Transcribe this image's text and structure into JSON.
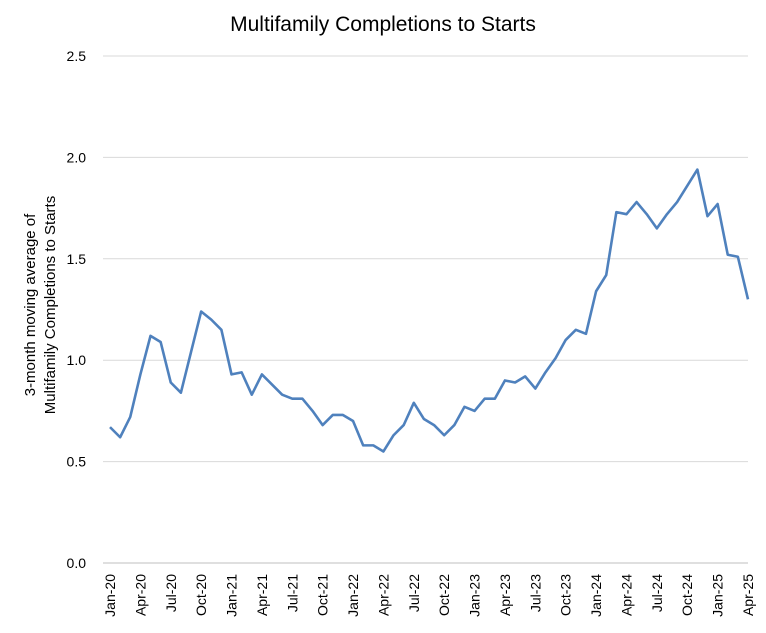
{
  "chart_data": {
    "type": "line",
    "title": "Multifamily Completions to Starts",
    "ylabel_lines": [
      "3-month moving average of",
      "Multifamily Completions to Starts"
    ],
    "xlabel": "",
    "ylim": [
      0,
      2.5
    ],
    "yticks": [
      "0.0",
      "0.5",
      "1.0",
      "1.5",
      "2.0",
      "2.5"
    ],
    "ytick_values": [
      0,
      0.5,
      1.0,
      1.5,
      2.0,
      2.5
    ],
    "grid": true,
    "legend": "none",
    "line_color": "#4f81bd",
    "x": [
      "Jan-20",
      "Feb-20",
      "Mar-20",
      "Apr-20",
      "May-20",
      "Jun-20",
      "Jul-20",
      "Aug-20",
      "Sep-20",
      "Oct-20",
      "Nov-20",
      "Dec-20",
      "Jan-21",
      "Feb-21",
      "Mar-21",
      "Apr-21",
      "May-21",
      "Jun-21",
      "Jul-21",
      "Aug-21",
      "Sep-21",
      "Oct-21",
      "Nov-21",
      "Dec-21",
      "Jan-22",
      "Feb-22",
      "Mar-22",
      "Apr-22",
      "May-22",
      "Jun-22",
      "Jul-22",
      "Aug-22",
      "Sep-22",
      "Oct-22",
      "Nov-22",
      "Dec-22",
      "Jan-23",
      "Feb-23",
      "Mar-23",
      "Apr-23",
      "May-23",
      "Jun-23",
      "Jul-23",
      "Aug-23",
      "Sep-23",
      "Oct-23",
      "Nov-23",
      "Dec-23",
      "Jan-24",
      "Feb-24",
      "Mar-24",
      "Apr-24",
      "May-24",
      "Jun-24",
      "Jul-24",
      "Aug-24",
      "Sep-24",
      "Oct-24",
      "Nov-24",
      "Dec-24",
      "Jan-25",
      "Feb-25",
      "Mar-25",
      "Apr-25"
    ],
    "xtick_labels": [
      "Jan-20",
      "Apr-20",
      "Jul-20",
      "Oct-20",
      "Jan-21",
      "Apr-21",
      "Jul-21",
      "Oct-21",
      "Jan-22",
      "Apr-22",
      "Jul-22",
      "Oct-22",
      "Jan-23",
      "Apr-23",
      "Jul-23",
      "Oct-23",
      "Jan-24",
      "Apr-24",
      "Jul-24",
      "Oct-24",
      "Jan-25",
      "Apr-25"
    ],
    "series": [
      {
        "values": [
          0.67,
          0.62,
          0.72,
          0.93,
          1.12,
          1.09,
          0.89,
          0.84,
          1.04,
          1.24,
          1.2,
          1.15,
          0.93,
          0.94,
          0.83,
          0.93,
          0.88,
          0.83,
          0.81,
          0.81,
          0.75,
          0.68,
          0.73,
          0.73,
          0.7,
          0.58,
          0.58,
          0.55,
          0.63,
          0.68,
          0.79,
          0.71,
          0.68,
          0.63,
          0.68,
          0.77,
          0.75,
          0.81,
          0.81,
          0.9,
          0.89,
          0.92,
          0.86,
          0.94,
          1.01,
          1.1,
          1.15,
          1.13,
          1.34,
          1.42,
          1.73,
          1.72,
          1.78,
          1.72,
          1.65,
          1.72,
          1.78,
          1.86,
          1.94,
          1.71,
          1.77,
          1.52,
          1.51,
          1.3
        ]
      }
    ]
  }
}
